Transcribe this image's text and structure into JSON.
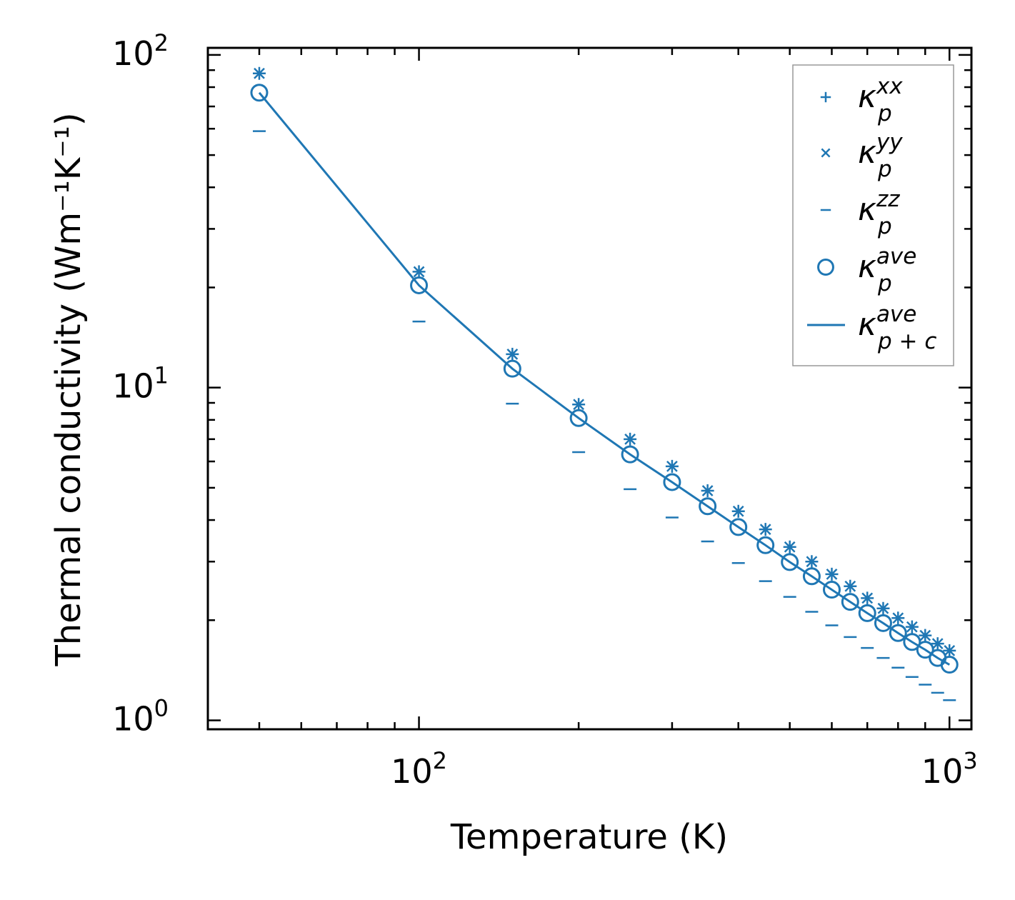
{
  "chart_data": {
    "type": "scatter",
    "x_scale": "log",
    "y_scale": "log",
    "xlim": [
      40,
      1100
    ],
    "ylim": [
      0.94,
      105
    ],
    "xlabel": "Temperature (K)",
    "ylabel": "Thermal conductivity (Wm⁻¹K⁻¹)",
    "x_ticks": [
      {
        "base": "10",
        "exp": "2"
      },
      {
        "base": "10",
        "exp": "3"
      }
    ],
    "y_ticks": [
      {
        "base": "10",
        "exp": "0"
      },
      {
        "base": "10",
        "exp": "1"
      },
      {
        "base": "10",
        "exp": "2"
      }
    ],
    "color": "#1f77b4",
    "legend_position": "top-right",
    "x": [
      50,
      100,
      150,
      200,
      250,
      300,
      350,
      400,
      450,
      500,
      550,
      600,
      650,
      700,
      750,
      800,
      850,
      900,
      950,
      1000
    ],
    "series": [
      {
        "name": "κ_p^xx",
        "symbol": "κ",
        "sub": "p",
        "sup": "xx",
        "marker": "plus",
        "values": [
          88,
          22.3,
          12.6,
          8.9,
          7.0,
          5.8,
          4.9,
          4.25,
          3.75,
          3.32,
          3.0,
          2.75,
          2.53,
          2.33,
          2.17,
          2.03,
          1.91,
          1.8,
          1.7,
          1.62
        ]
      },
      {
        "name": "κ_p^yy",
        "symbol": "κ",
        "sub": "p",
        "sup": "yy",
        "marker": "x",
        "values": [
          88,
          22.3,
          12.6,
          8.9,
          7.0,
          5.8,
          4.9,
          4.25,
          3.75,
          3.32,
          3.0,
          2.75,
          2.53,
          2.33,
          2.17,
          2.03,
          1.91,
          1.8,
          1.7,
          1.62
        ]
      },
      {
        "name": "κ_p^zz",
        "symbol": "κ",
        "sub": "p",
        "sup": "zz",
        "marker": "hline",
        "values": [
          59,
          15.8,
          8.95,
          6.4,
          4.95,
          4.07,
          3.45,
          2.97,
          2.62,
          2.35,
          2.12,
          1.93,
          1.78,
          1.65,
          1.54,
          1.44,
          1.35,
          1.28,
          1.21,
          1.15
        ]
      },
      {
        "name": "κ_p^ave",
        "symbol": "κ",
        "sub": "p",
        "sup": "ave",
        "marker": "circle",
        "values": [
          77,
          20.3,
          11.4,
          8.1,
          6.3,
          5.2,
          4.4,
          3.81,
          3.36,
          2.99,
          2.71,
          2.47,
          2.27,
          2.1,
          1.96,
          1.83,
          1.72,
          1.63,
          1.54,
          1.47
        ]
      },
      {
        "name": "κ_p+c^ave",
        "symbol": "κ",
        "sub": "p + c",
        "sup": "ave",
        "marker": "line",
        "values": [
          77,
          20.3,
          11.4,
          8.1,
          6.3,
          5.2,
          4.4,
          3.81,
          3.36,
          2.99,
          2.71,
          2.47,
          2.27,
          2.1,
          1.96,
          1.83,
          1.72,
          1.63,
          1.54,
          1.47
        ]
      }
    ]
  }
}
